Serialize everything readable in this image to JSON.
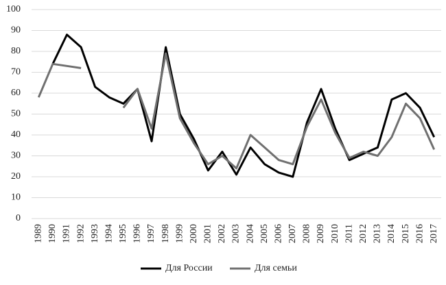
{
  "chart_data": {
    "type": "line",
    "categories": [
      "1989",
      "1990",
      "1991",
      "1992",
      "1993",
      "1994",
      "1995",
      "1996",
      "1997",
      "1998",
      "1999",
      "2000",
      "2001",
      "2002",
      "2003",
      "2004",
      "2005",
      "2006",
      "2007",
      "2008",
      "2009",
      "2010",
      "2011",
      "2012",
      "2013",
      "2014",
      "2015",
      "2016",
      "2017"
    ],
    "series": [
      {
        "name": "Для России",
        "color": "#000000",
        "values": [
          null,
          74,
          88,
          82,
          63,
          58,
          55,
          62,
          37,
          82,
          50,
          38,
          23,
          32,
          21,
          34,
          26,
          22,
          20,
          46,
          62,
          43,
          28,
          31,
          34,
          57,
          60,
          53,
          39
        ]
      },
      {
        "name": "Для семьи",
        "color": "#707070",
        "values": [
          58,
          74,
          73,
          72,
          null,
          null,
          53,
          62,
          43,
          79,
          48,
          36,
          26,
          30,
          24,
          40,
          34,
          28,
          26,
          44,
          57,
          41,
          29,
          32,
          30,
          39,
          55,
          48,
          33
        ]
      }
    ],
    "ylim": [
      0,
      100
    ],
    "yticks": [
      0,
      10,
      20,
      30,
      40,
      50,
      60,
      70,
      80,
      90,
      100
    ],
    "grid": true,
    "legend": "bottom"
  }
}
